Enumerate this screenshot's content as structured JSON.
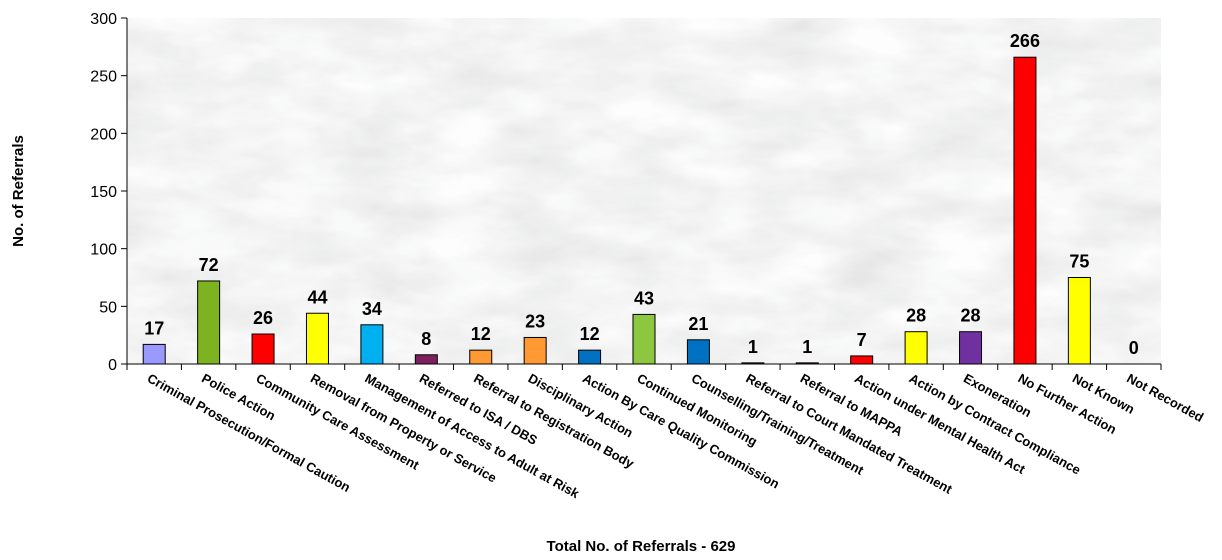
{
  "chart_data": {
    "type": "bar",
    "title": "",
    "xlabel": "Total No. of Referrals - 629",
    "ylabel": "No. of Referrals",
    "ylim": [
      0,
      300
    ],
    "yticks": [
      0,
      50,
      100,
      150,
      200,
      250,
      300
    ],
    "grid": false,
    "legend": "none",
    "categories": [
      "Criminal Prosecution/Formal Caution",
      "Police Action",
      "Community Care Assessment",
      "Removal from Property or Service",
      "Management of Access to Adult at Risk",
      "Referred to ISA / DBS",
      "Referral to Registration Body",
      "Disciplinary Action",
      "Action By Care Quality Commission",
      "Continued Monitoring",
      "Counselling/Training/Treatment",
      "Referral to Court Mandated Treatment",
      "Referral to MAPPA",
      "Action under Mental Health Act",
      "Action by Contract Compliance",
      "Exoneration",
      "No Further Action",
      "Not Known",
      "Not Recorded"
    ],
    "values": [
      17,
      72,
      26,
      44,
      34,
      8,
      12,
      23,
      12,
      43,
      21,
      1,
      1,
      7,
      28,
      28,
      266,
      75,
      0
    ],
    "colors": [
      "#9999ff",
      "#7db321",
      "#ff0000",
      "#ffff00",
      "#00b0f0",
      "#7f1f5f",
      "#ff9933",
      "#ff9933",
      "#0070c0",
      "#8dc63f",
      "#0070c0",
      "#7f1f5f",
      "#7f1f5f",
      "#ff0000",
      "#ffff00",
      "#7030a0",
      "#ff0000",
      "#ffff00",
      "#000000"
    ],
    "background": "marble-grey"
  }
}
